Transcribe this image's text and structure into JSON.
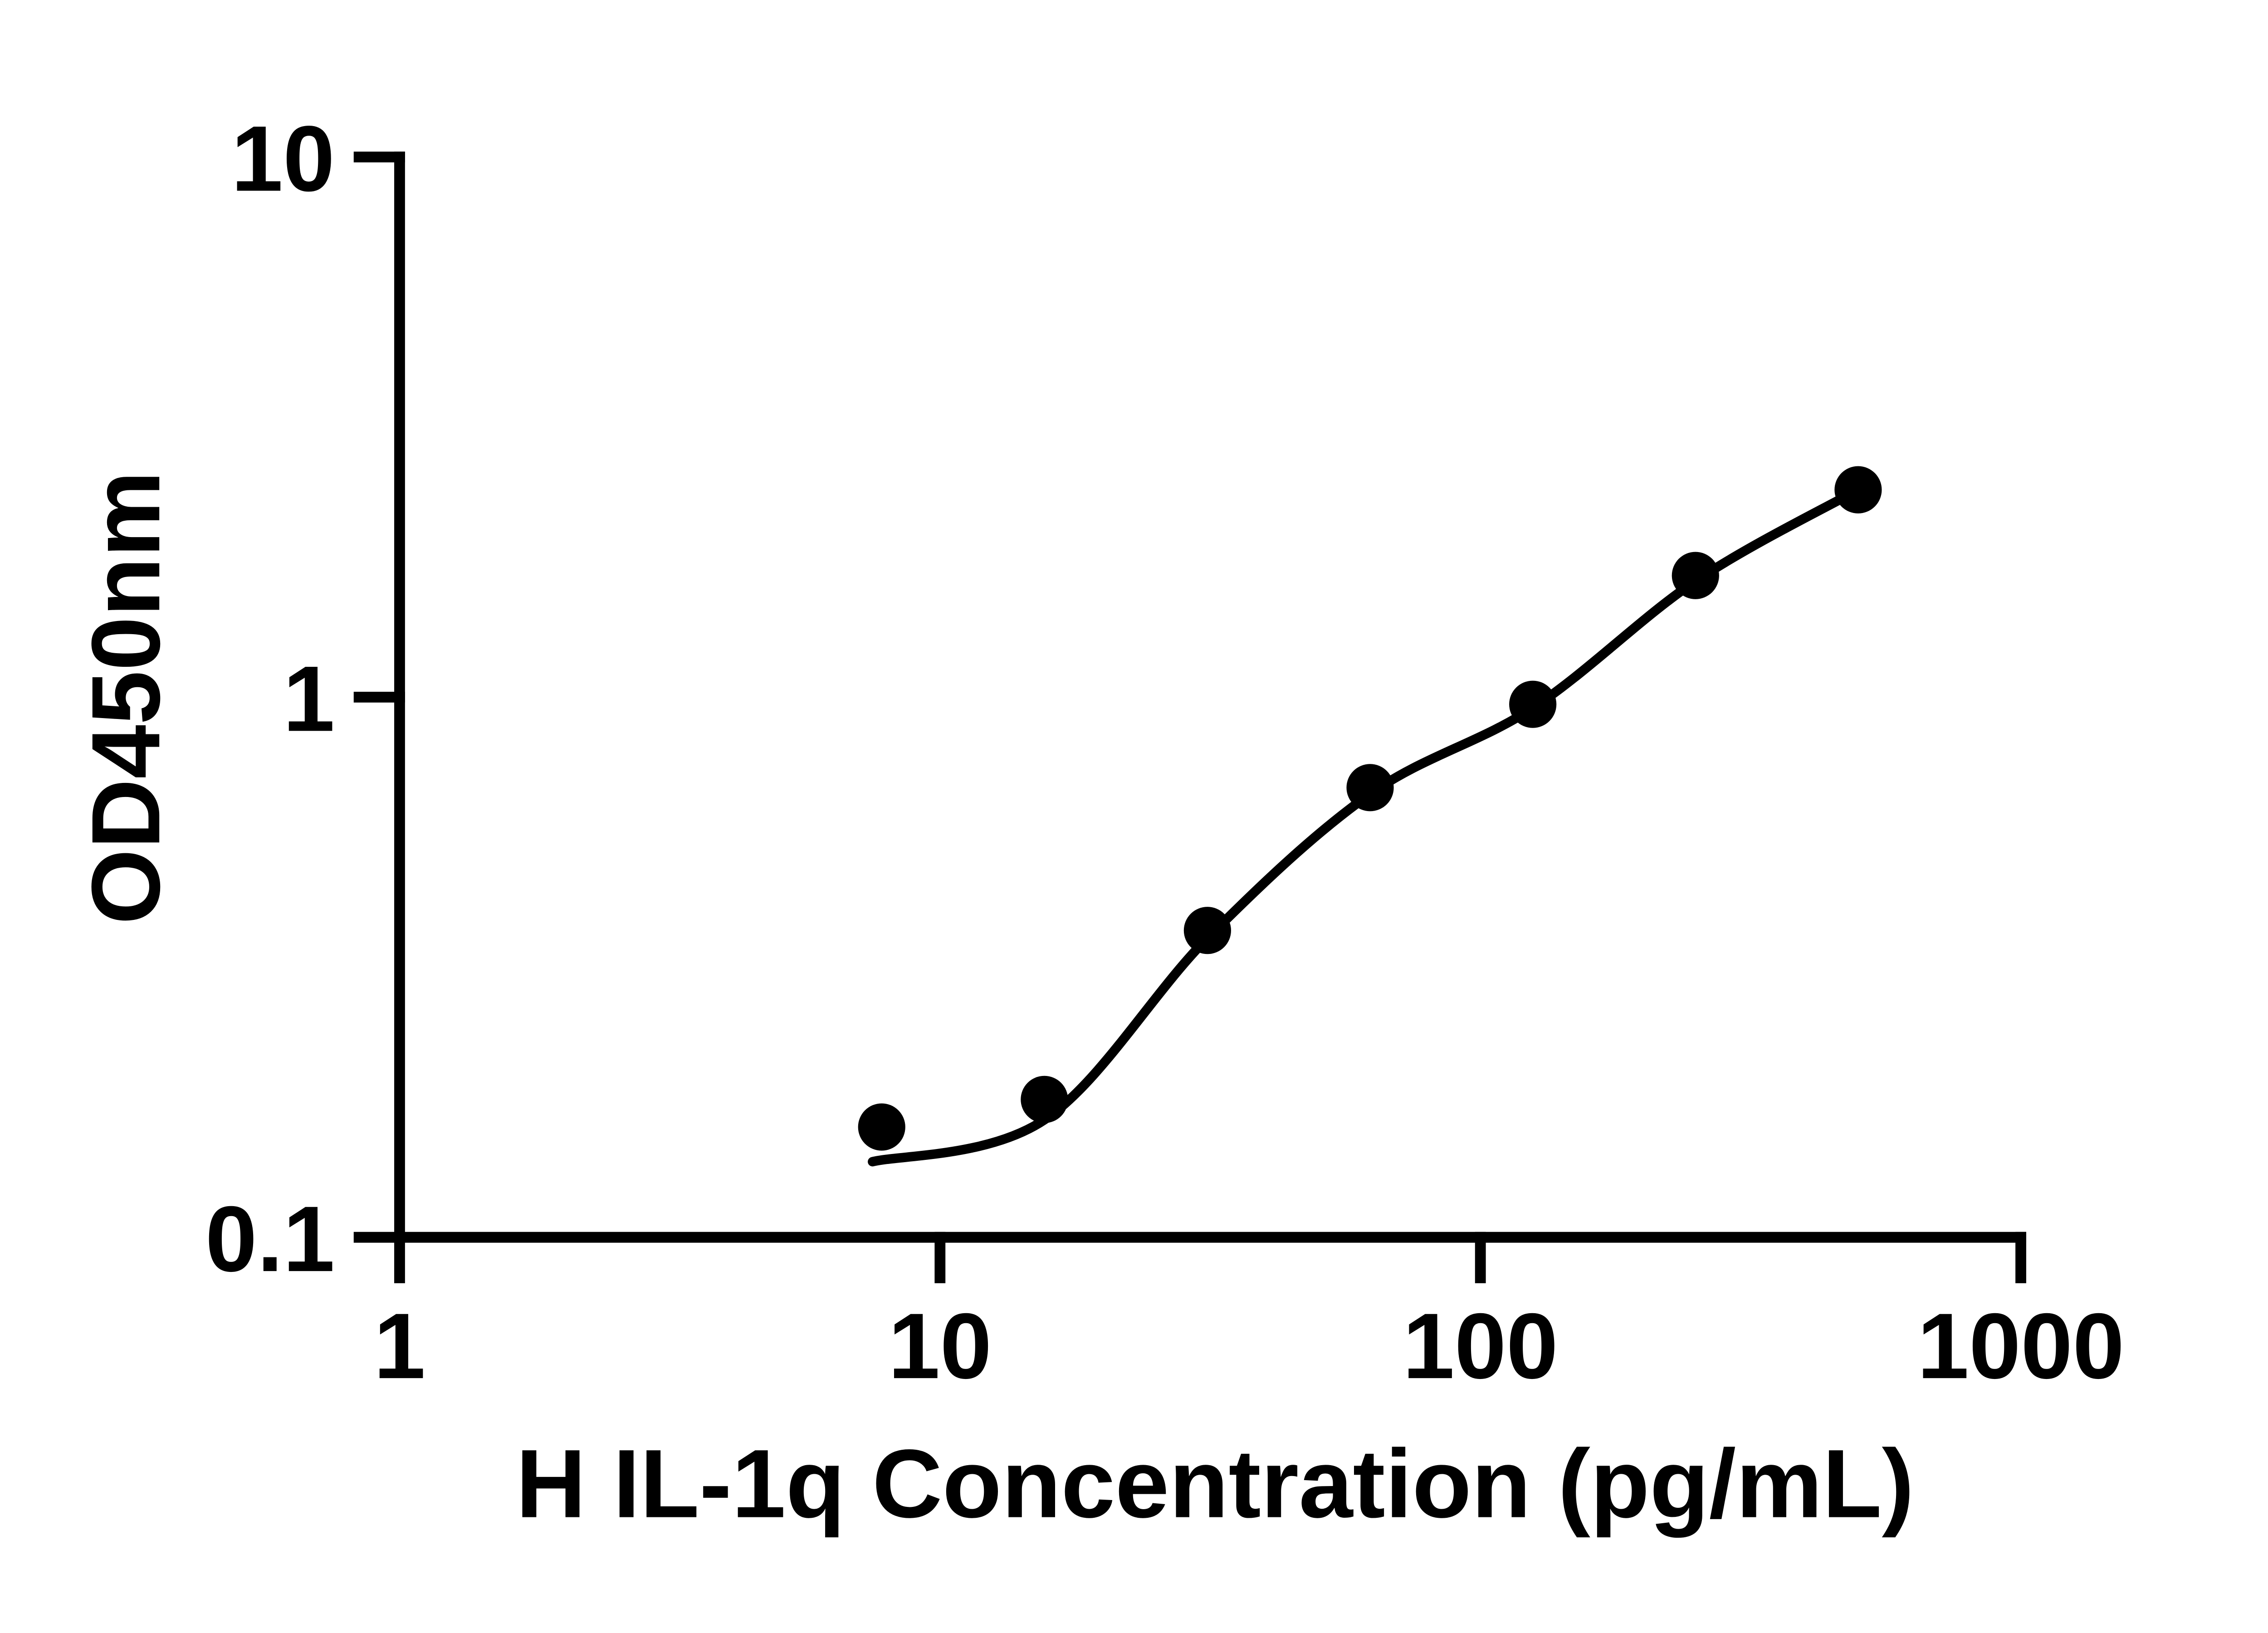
{
  "chart_data": {
    "type": "scatter",
    "title": "",
    "xlabel": "H IL-1q Concentration (pg/mL)",
    "ylabel": "OD450nm",
    "x_scale": "log",
    "y_scale": "log",
    "xlim": [
      1,
      1000
    ],
    "ylim": [
      0.1,
      10
    ],
    "x_ticks": [
      1,
      10,
      100,
      1000
    ],
    "x_tick_labels": [
      "1",
      "10",
      "100",
      "1000"
    ],
    "y_ticks": [
      0.1,
      1,
      10
    ],
    "y_tick_labels": [
      "0.1",
      "1",
      "10"
    ],
    "grid": false,
    "legend": null,
    "series": [
      {
        "name": "standard-curve-points",
        "marker": "circle",
        "color": "#000000",
        "points": [
          {
            "x": 7.8,
            "y": 0.16
          },
          {
            "x": 15.6,
            "y": 0.18
          },
          {
            "x": 31.25,
            "y": 0.37
          },
          {
            "x": 62.5,
            "y": 0.68
          },
          {
            "x": 125,
            "y": 0.97
          },
          {
            "x": 250,
            "y": 1.68
          },
          {
            "x": 500,
            "y": 2.42
          }
        ]
      }
    ],
    "fit_curve": {
      "name": "4pl-fit-line",
      "color": "#000000",
      "points": [
        {
          "x": 7.5,
          "y": 0.138
        },
        {
          "x": 15.6,
          "y": 0.165
        },
        {
          "x": 31.25,
          "y": 0.358
        },
        {
          "x": 62.5,
          "y": 0.662
        },
        {
          "x": 125,
          "y": 0.955
        },
        {
          "x": 250,
          "y": 1.64
        },
        {
          "x": 500,
          "y": 2.42
        }
      ]
    }
  },
  "colors": {
    "background": "#ffffff",
    "foreground": "#000000"
  }
}
